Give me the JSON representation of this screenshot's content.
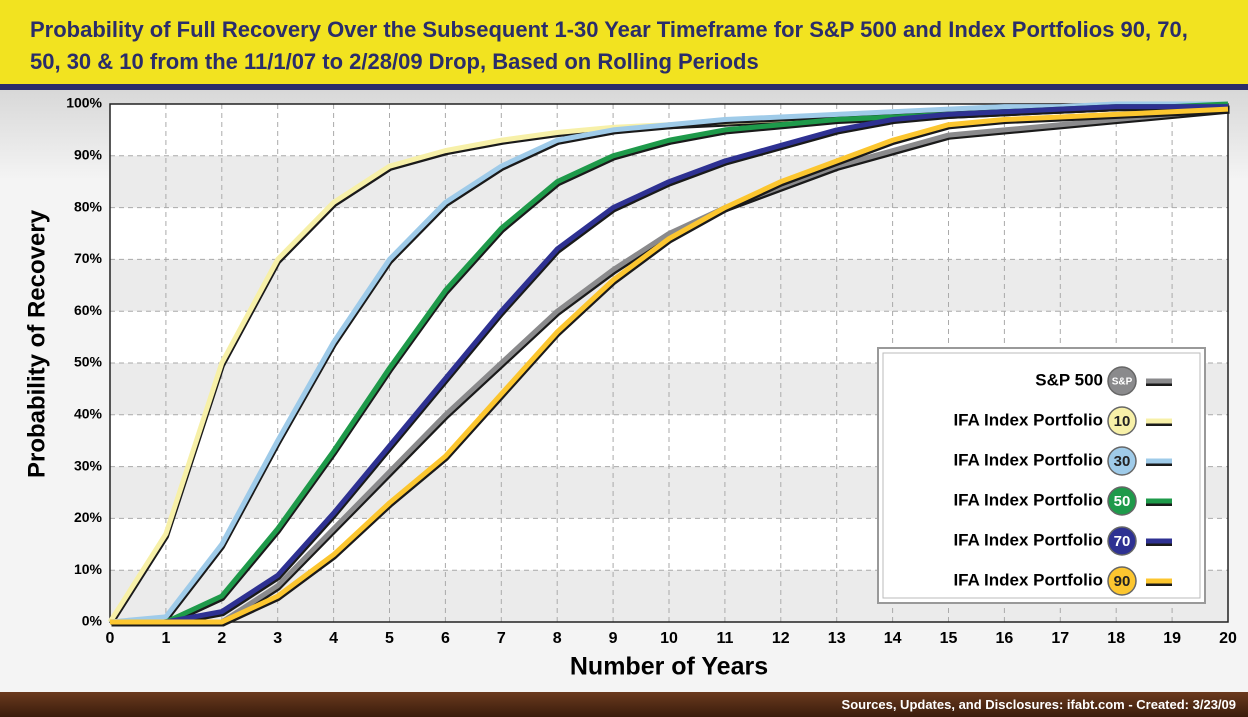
{
  "chart_data": {
    "type": "line",
    "title": "Probability of Full Recovery Over the Subsequent 1-30 Year Timeframe for S&P 500 and Index Portfolios 90, 70, 50, 30 & 10 from the 11/1/07 to 2/28/09 Drop, Based on Rolling Periods",
    "x_label": "Number of Years",
    "y_label": "Probability of Recovery",
    "footer": "Sources, Updates, and Disclosures: ifabt.com - Created: 3/23/09",
    "x": [
      0,
      1,
      2,
      3,
      4,
      5,
      6,
      7,
      8,
      9,
      10,
      11,
      12,
      13,
      14,
      15,
      16,
      17,
      18,
      19,
      20
    ],
    "xlim": [
      0,
      20
    ],
    "xticks": [
      0,
      1,
      2,
      3,
      4,
      5,
      6,
      7,
      8,
      9,
      10,
      11,
      12,
      13,
      14,
      15,
      16,
      17,
      18,
      19,
      20
    ],
    "ylim": [
      0,
      100
    ],
    "yticks": [
      {
        "value": 0,
        "label": "0%"
      },
      {
        "value": 10,
        "label": "10%"
      },
      {
        "value": 20,
        "label": "20%"
      },
      {
        "value": 30,
        "label": "30%"
      },
      {
        "value": 40,
        "label": "40%"
      },
      {
        "value": 50,
        "label": "50%"
      },
      {
        "value": 60,
        "label": "60%"
      },
      {
        "value": 70,
        "label": "70%"
      },
      {
        "value": 80,
        "label": "80%"
      },
      {
        "value": 90,
        "label": "90%"
      },
      {
        "value": 100,
        "label": "100%"
      }
    ],
    "grid": true,
    "legend": "lower right",
    "series": [
      {
        "name": "S&P 500",
        "badge": "S&P",
        "color": "#8a8a8c",
        "values": [
          0,
          0,
          0,
          7,
          18,
          29,
          40,
          50,
          60,
          68,
          75,
          80,
          84,
          88,
          91,
          94,
          95,
          96,
          97,
          98,
          99
        ]
      },
      {
        "name": "IFA Index Portfolio",
        "badge": "10",
        "color": "#f7f0a8",
        "values": [
          0,
          17,
          50,
          70,
          81,
          88,
          91,
          93,
          94.5,
          95.5,
          96,
          96.5,
          97,
          97.5,
          98,
          98.5,
          99,
          99,
          99.5,
          99.5,
          100
        ]
      },
      {
        "name": "IFA Index Portfolio",
        "badge": "30",
        "color": "#9fcbe9",
        "values": [
          0,
          1,
          15,
          35,
          54,
          70,
          81,
          88,
          93,
          95,
          96,
          97,
          97.5,
          98,
          98.5,
          99,
          99.5,
          99.5,
          100,
          100,
          100
        ]
      },
      {
        "name": "IFA Index Portfolio",
        "badge": "50",
        "color": "#1e9a4a",
        "values": [
          0,
          0,
          5,
          18,
          33,
          49,
          64,
          76,
          85,
          90,
          93,
          95,
          96,
          97,
          97.5,
          98,
          98.5,
          99,
          99.5,
          99.5,
          100
        ]
      },
      {
        "name": "IFA Index Portfolio",
        "badge": "70",
        "color": "#2e3192",
        "values": [
          0,
          0,
          2,
          9,
          21,
          34,
          47,
          60,
          72,
          80,
          85,
          89,
          92,
          95,
          97,
          98,
          98.5,
          99,
          99.5,
          99.5,
          99.5
        ]
      },
      {
        "name": "IFA Index Portfolio",
        "badge": "90",
        "color": "#fcc62f",
        "values": [
          0,
          0,
          0,
          5,
          13,
          23,
          32,
          44,
          56,
          66,
          74,
          80,
          85,
          89,
          93,
          96,
          97,
          97.5,
          98,
          98.5,
          99
        ]
      }
    ]
  }
}
